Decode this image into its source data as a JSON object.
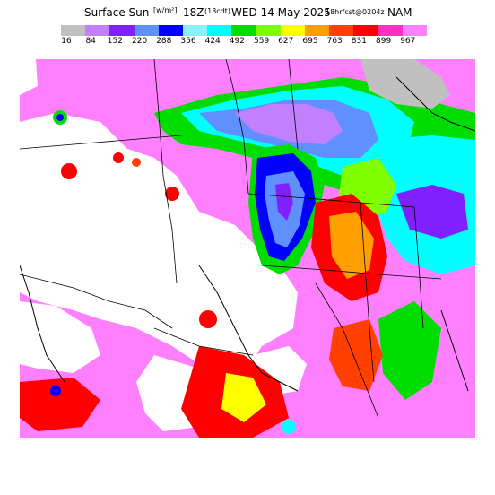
{
  "title": {
    "main": "Surface Sun",
    "unit": "[w/m²]",
    "valid_hour": "18Z",
    "local_time": "(13cdt)",
    "date": "WED 14 May 2025",
    "forecast": "18hrfcst@0204z",
    "model": "NAM"
  },
  "legend": {
    "colors": [
      "#c0c0c0",
      "#c080ff",
      "#8020ff",
      "#6090ff",
      "#0000ff",
      "#8cf0ff",
      "#00ffff",
      "#00dc00",
      "#80ff00",
      "#ffff00",
      "#ffa000",
      "#ff4000",
      "#ff0000",
      "#ff30c0",
      "#ff80ff"
    ],
    "labels": [
      "16",
      "84",
      "152",
      "220",
      "288",
      "356",
      "424",
      "492",
      "559",
      "627",
      "695",
      "763",
      "831",
      "899",
      "967"
    ]
  },
  "map": {
    "background": "#ffffff",
    "border_color": "#000000"
  }
}
